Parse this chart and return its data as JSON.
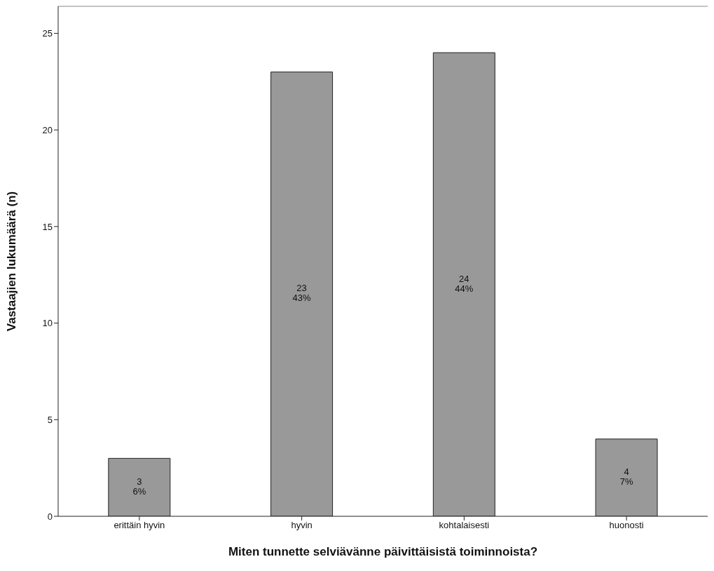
{
  "chart_data": {
    "type": "bar",
    "xlabel": "Miten tunnette selviävänne päivittäisistä toiminnoista?",
    "ylabel": "Vastaajien lukumäärä (n)",
    "categories": [
      "erittäin hyvin",
      "hyvin",
      "kohtalaisesti",
      "huonosti"
    ],
    "values": [
      3,
      23,
      24,
      4
    ],
    "color": "#999999",
    "value_labels": [
      "3\n6%",
      "23\n43%",
      "24\n44%",
      "4\n7%"
    ],
    "ylim": [
      0,
      26.4
    ],
    "yticks": [
      0,
      5,
      10,
      15,
      20,
      25
    ],
    "grid": false,
    "legend": false
  }
}
